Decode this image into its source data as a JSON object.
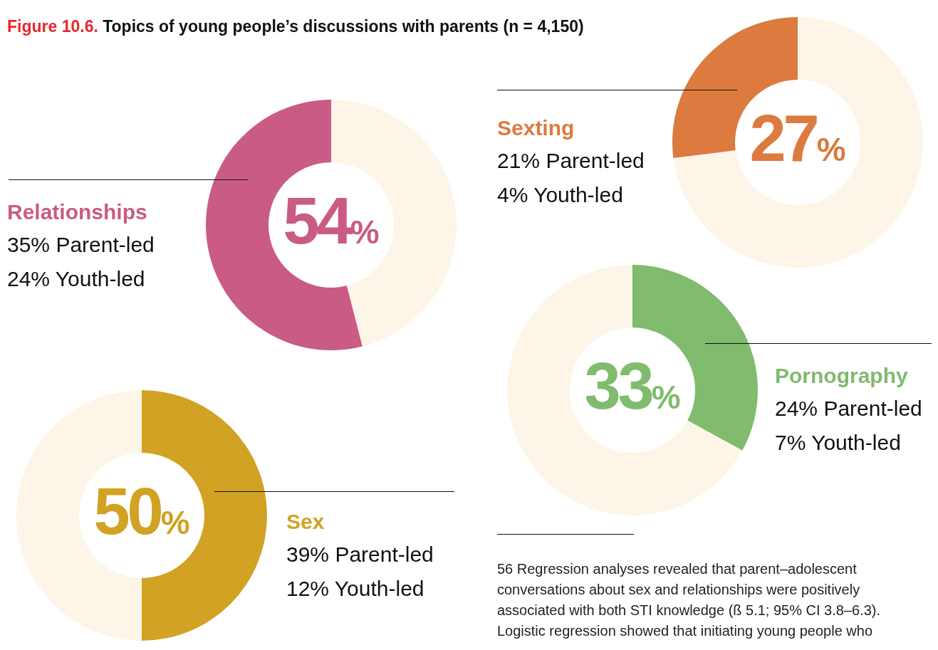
{
  "chart_data": [
    {
      "type": "donut",
      "title": "Figure 10.6. Topics of young people’s discussions with parents (n = 4,150)",
      "categories": [
        null,
        "Relationships"
      ],
      "values": [
        46,
        54
      ],
      "colors": [
        "#fcf5e8",
        "#c95b84"
      ],
      "value_labels": [
        null,
        "54%"
      ],
      "annotations": [
        "35% Parent-led",
        "24% Youth-led"
      ]
    },
    {
      "type": "donut",
      "categories": [
        null,
        "Sexting"
      ],
      "values": [
        73,
        27
      ],
      "colors": [
        "#fcf5e8",
        "#dc7a3f"
      ],
      "value_labels": [
        null,
        "27%"
      ],
      "annotations": [
        "21% Parent-led",
        "4% Youth-led"
      ]
    },
    {
      "type": "donut",
      "categories": [
        "Pornography",
        null
      ],
      "values": [
        33,
        67
      ],
      "colors": [
        "#80bb6e",
        "#fcf5e8"
      ],
      "value_labels": [
        "33%",
        null
      ],
      "annotations": [
        "24% Parent-led",
        "7% Youth-led"
      ]
    },
    {
      "type": "donut",
      "categories": [
        "Sex",
        null
      ],
      "values": [
        50,
        50
      ],
      "colors": [
        "#d1a223",
        "#fcf5e8"
      ],
      "value_labels": [
        "50%",
        null
      ],
      "annotations": [
        "39% Parent-led",
        "12% Youth-led"
      ]
    },
    {
      "type": "other",
      "annotations": [
        "56   Regression analyses revealed that parent–adolescent conversations about sex and relationships were positively associated with both STI knowledge (ß 5.1; 95% CI 3.8–6.3). Logistic regression showed that initiating young people who"
      ]
    }
  ]
}
